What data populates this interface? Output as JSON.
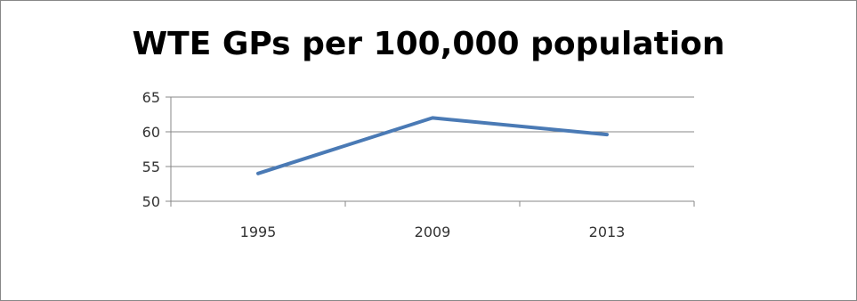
{
  "chart_data": {
    "type": "line",
    "title": "WTE GPs per 100,000 population",
    "xlabel": "",
    "ylabel": "",
    "categories": [
      "1995",
      "2009",
      "2013"
    ],
    "series": [
      {
        "values": [
          54,
          62,
          59.6
        ]
      }
    ],
    "ylim": [
      50,
      65
    ],
    "yticks": [
      50,
      55,
      60,
      65
    ],
    "grid": true,
    "legend": "none",
    "colors": {
      "line": "#4a7ab5",
      "grid": "#878787",
      "axis": "#878787"
    }
  }
}
